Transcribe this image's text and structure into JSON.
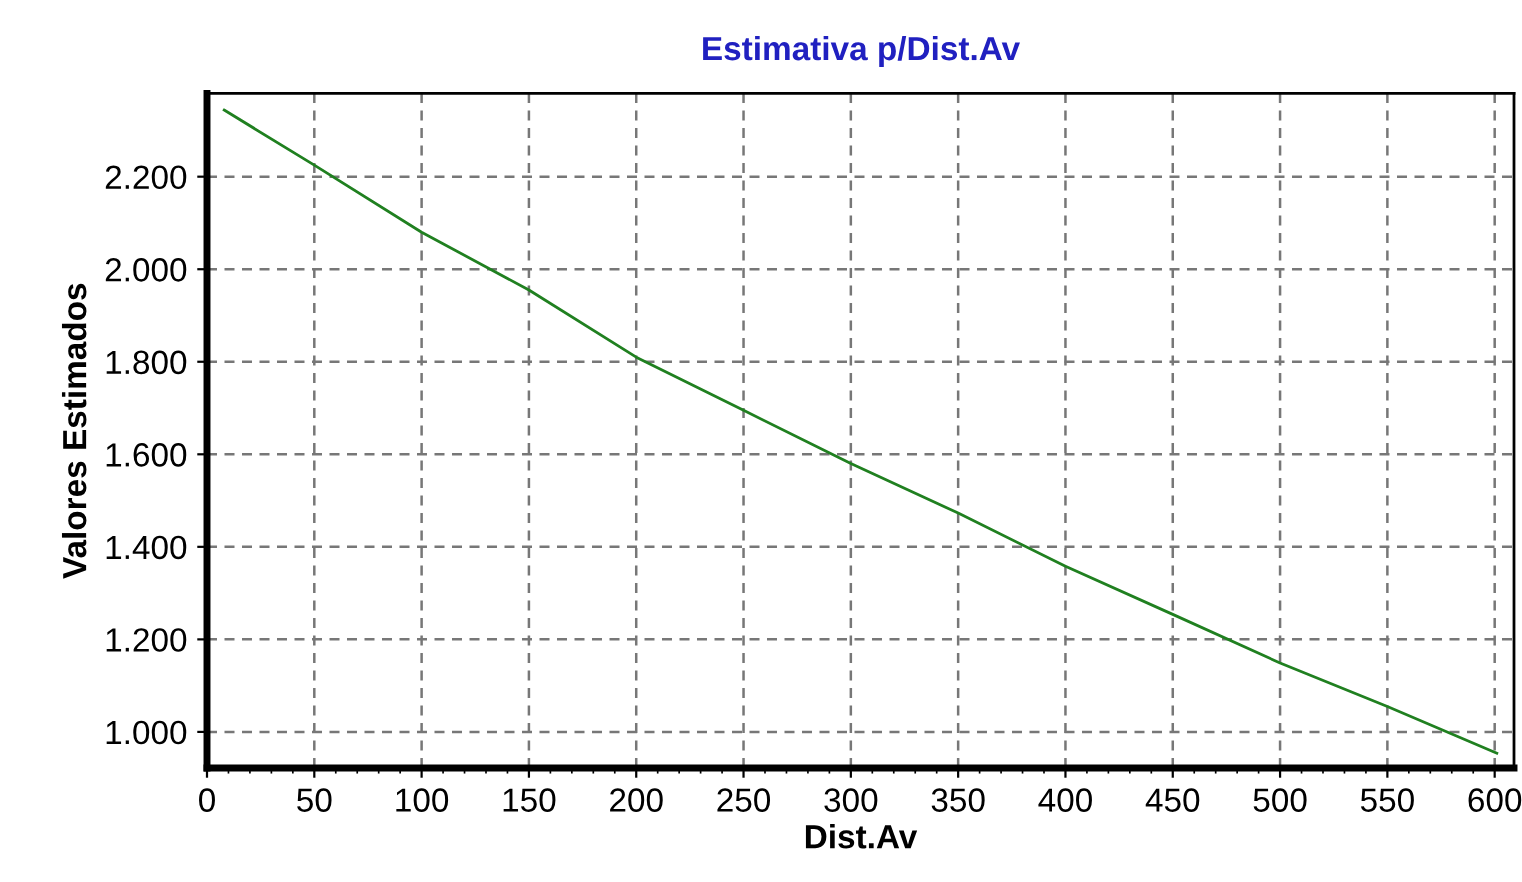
{
  "chart_data": {
    "type": "line",
    "title": "Estimativa p/Dist.Av",
    "xlabel": "Dist.Av",
    "ylabel": "Valores Estimados",
    "x": [
      8,
      50,
      100,
      150,
      200,
      250,
      300,
      350,
      400,
      450,
      500,
      550,
      601
    ],
    "series": [
      {
        "color": "#208020",
        "values": [
          2344,
          2225,
          2080,
          1955,
          1810,
          1695,
          1580,
          1473,
          1358,
          1254,
          1149,
          1055,
          954
        ]
      }
    ],
    "xlim": [
      0,
      609
    ],
    "ylim": [
      922,
      2380
    ],
    "xticks": [
      0,
      50,
      100,
      150,
      200,
      250,
      300,
      350,
      400,
      450,
      500,
      550,
      600
    ],
    "yticks": [
      {
        "value": 1000,
        "label": "1.000"
      },
      {
        "value": 1200,
        "label": "1.200"
      },
      {
        "value": 1400,
        "label": "1.400"
      },
      {
        "value": 1600,
        "label": "1.600"
      },
      {
        "value": 1800,
        "label": "1.800"
      },
      {
        "value": 2000,
        "label": "2.000"
      },
      {
        "value": 2200,
        "label": "2.200"
      }
    ],
    "grid": true,
    "legend": false,
    "marker": "none",
    "line_style": "solid"
  }
}
